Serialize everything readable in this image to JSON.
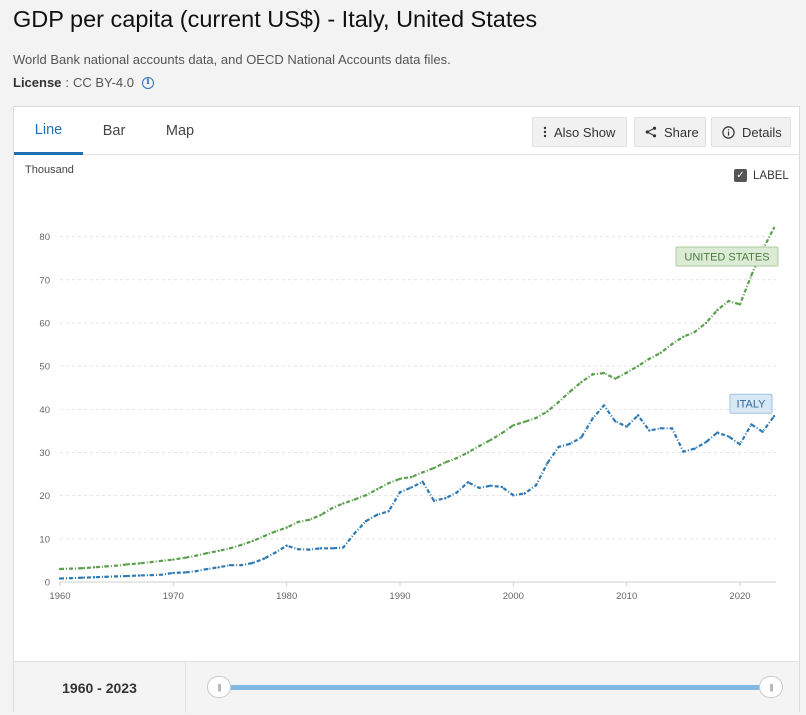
{
  "header": {
    "title": "GDP per capita (current US$) - Italy, United States",
    "source": "World Bank national accounts data, and OECD National Accounts data files.",
    "license_label": "License",
    "license_sep": ":",
    "license_value": "CC BY-4.0",
    "info_icon": "info-icon"
  },
  "tabs": [
    {
      "label": "Line",
      "active": true
    },
    {
      "label": "Bar",
      "active": false
    },
    {
      "label": "Map",
      "active": false
    }
  ],
  "toolbar": {
    "also_show_label": "Also Show",
    "also_show_icon": "vertical-dots-icon",
    "share_label": "Share",
    "share_icon": "share-icon",
    "details_label": "Details",
    "details_icon": "info-icon"
  },
  "label_toggle": {
    "text": "LABEL",
    "checked": true
  },
  "range": {
    "label": "1960 - 2023",
    "start": 1960,
    "end": 2023
  },
  "colors": {
    "italy": "#2f7ab4",
    "united_states": "#5b9f4e",
    "accent": "#1f6fb5",
    "slider": "#7fb9e4"
  },
  "chart_data": {
    "type": "line",
    "unit_label": "Thousand",
    "xlim": [
      1960,
      2023
    ],
    "ylim": [
      0,
      82
    ],
    "x_ticks": [
      1960,
      1970,
      1980,
      1990,
      2000,
      2010,
      2020
    ],
    "y_ticks": [
      0,
      10,
      20,
      30,
      40,
      50,
      60,
      70,
      80
    ],
    "grid": "horizontal dashed",
    "x": [
      1960,
      1961,
      1962,
      1963,
      1964,
      1965,
      1966,
      1967,
      1968,
      1969,
      1970,
      1971,
      1972,
      1973,
      1974,
      1975,
      1976,
      1977,
      1978,
      1979,
      1980,
      1981,
      1982,
      1983,
      1984,
      1985,
      1986,
      1987,
      1988,
      1989,
      1990,
      1991,
      1992,
      1993,
      1994,
      1995,
      1996,
      1997,
      1998,
      1999,
      2000,
      2001,
      2002,
      2003,
      2004,
      2005,
      2006,
      2007,
      2008,
      2009,
      2010,
      2011,
      2012,
      2013,
      2014,
      2015,
      2016,
      2017,
      2018,
      2019,
      2020,
      2021,
      2022,
      2023
    ],
    "series": [
      {
        "name": "UNITED STATES",
        "values": [
          3.0,
          3.1,
          3.2,
          3.4,
          3.6,
          3.8,
          4.1,
          4.3,
          4.6,
          4.9,
          5.2,
          5.6,
          6.1,
          6.7,
          7.2,
          7.8,
          8.6,
          9.5,
          10.6,
          11.7,
          12.6,
          13.9,
          14.4,
          15.5,
          17.1,
          18.2,
          19.1,
          20.1,
          21.5,
          22.9,
          23.9,
          24.3,
          25.4,
          26.4,
          27.7,
          28.7,
          30.0,
          31.5,
          32.9,
          34.5,
          36.3,
          37.1,
          38.0,
          39.5,
          41.7,
          44.1,
          46.3,
          48.1,
          48.4,
          47.1,
          48.5,
          50.0,
          51.7,
          53.1,
          55.1,
          56.8,
          57.9,
          60.0,
          63.0,
          65.1,
          64.3,
          71.0,
          77.0,
          82.0
        ]
      },
      {
        "name": "ITALY",
        "values": [
          0.8,
          0.9,
          1.0,
          1.1,
          1.2,
          1.3,
          1.4,
          1.5,
          1.6,
          1.7,
          2.1,
          2.2,
          2.5,
          3.0,
          3.4,
          3.9,
          3.9,
          4.4,
          5.4,
          6.8,
          8.4,
          7.6,
          7.5,
          7.8,
          7.8,
          8.0,
          11.3,
          14.1,
          15.6,
          16.4,
          20.8,
          21.9,
          23.2,
          18.8,
          19.4,
          20.7,
          23.1,
          21.8,
          22.3,
          22.0,
          20.1,
          20.5,
          22.4,
          27.5,
          31.3,
          32.0,
          33.5,
          37.9,
          40.9,
          37.2,
          36.0,
          38.6,
          35.1,
          35.6,
          35.6,
          30.2,
          30.9,
          32.4,
          34.6,
          33.7,
          31.9,
          36.5,
          34.8,
          38.4
        ]
      }
    ]
  }
}
